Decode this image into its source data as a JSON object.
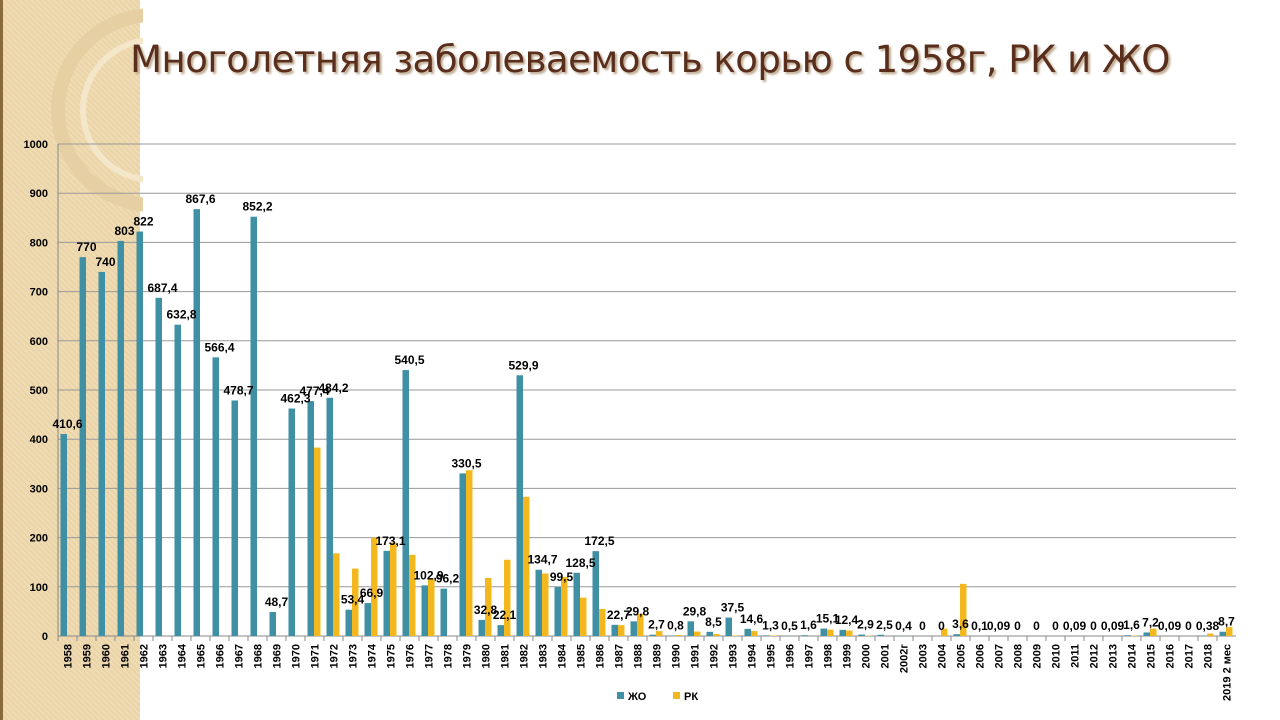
{
  "title": "Многолетняя заболеваемость корью  с 1958г, РК и ЖО",
  "colors": {
    "jo": "#3f8fa5",
    "rk": "#f3b81e"
  },
  "chart_data": {
    "type": "bar",
    "title": "Многолетняя заболеваемость корью  с 1958г, РК и ЖО",
    "xlabel": "",
    "ylabel": "",
    "ylim": [
      0,
      1000
    ],
    "yticks": [
      "0",
      "100",
      "200",
      "300",
      "400",
      "500",
      "600",
      "700",
      "800",
      "900",
      "1000"
    ],
    "grid": true,
    "legend_position": "bottom",
    "categories": [
      "1958",
      "1959",
      "1960",
      "1961",
      "1962",
      "1963",
      "1964",
      "1965",
      "1966",
      "1967",
      "1968",
      "1969",
      "1970",
      "1971",
      "1972",
      "1973",
      "1974",
      "1975",
      "1976",
      "1977",
      "1978",
      "1979",
      "1980",
      "1981",
      "1982",
      "1983",
      "1984",
      "1985",
      "1986",
      "1987",
      "1988",
      "1989",
      "1990",
      "1991",
      "1992",
      "1993",
      "1994",
      "1995",
      "1996",
      "1997",
      "1998",
      "1999",
      "2000",
      "2001",
      "2002г",
      "2003",
      "2004",
      "2005",
      "2006",
      "2007",
      "2008",
      "2009",
      "2010",
      "2011",
      "2012",
      "2013",
      "2014",
      "2015",
      "2016",
      "2017",
      "2018",
      "2019 2 мес"
    ],
    "series": [
      {
        "name": "ЖО",
        "values": [
          410.6,
          770,
          740,
          803,
          822,
          687.4,
          632.8,
          867.6,
          566.4,
          478.7,
          852.2,
          48.7,
          462.3,
          477.4,
          484.2,
          53.4,
          66.9,
          173.1,
          540.5,
          102.9,
          96.2,
          330.5,
          32.8,
          22.1,
          529.9,
          134.7,
          99.5,
          128.5,
          172.5,
          22.7,
          29.8,
          2.7,
          0.8,
          29.8,
          8.5,
          37.5,
          14.6,
          1.3,
          0.5,
          1.6,
          15.1,
          12.4,
          2.9,
          2.5,
          0.4,
          0,
          0,
          3.6,
          0.1,
          0.09,
          0,
          0,
          0,
          0.09,
          0,
          0.09,
          1.6,
          7.2,
          0.09,
          0,
          0.38,
          8.7
        ],
        "labels": [
          "410,6",
          "770",
          "740",
          "803",
          "822",
          "687,4",
          "632,8",
          "867,6",
          "566,4",
          "478,7",
          "852,2",
          "48,7",
          "462,3",
          "477,4",
          "484,2",
          "53,4",
          "66,9",
          "173,1",
          "540,5",
          "102,9",
          "96,2",
          "330,5",
          "32,8",
          "22,1",
          "529,9",
          "134,7",
          "99,5",
          "128,5",
          "172,5",
          "22,7",
          "29,8",
          "2,7",
          "0,8",
          "29,8",
          "8,5",
          "37,5",
          "14,6",
          "1,3",
          "0,5",
          "1,6",
          "15,1",
          "12,4",
          "2,9",
          "2,5",
          "0,4",
          "0",
          "0",
          "3,6",
          "0,1",
          "0,09",
          "0",
          "0",
          "0",
          "0,09",
          "0",
          "0,09",
          "1,6",
          "7,2",
          "0,09",
          "0",
          "0,38",
          "8,7"
        ]
      },
      {
        "name": "РК",
        "values": [
          0,
          0,
          0,
          0,
          0,
          0,
          0,
          0,
          0,
          0,
          0,
          0,
          0,
          383,
          168,
          137,
          200,
          190,
          165,
          117,
          0,
          337,
          118,
          155,
          283,
          127,
          120,
          78,
          55,
          22,
          45,
          10,
          2,
          9,
          4,
          1,
          10,
          1,
          0,
          0,
          13,
          11,
          1,
          0,
          0,
          0,
          15,
          106,
          0,
          0,
          0,
          0,
          0,
          0,
          0,
          0,
          1,
          15,
          0,
          0,
          5,
          18
        ]
      }
    ]
  }
}
